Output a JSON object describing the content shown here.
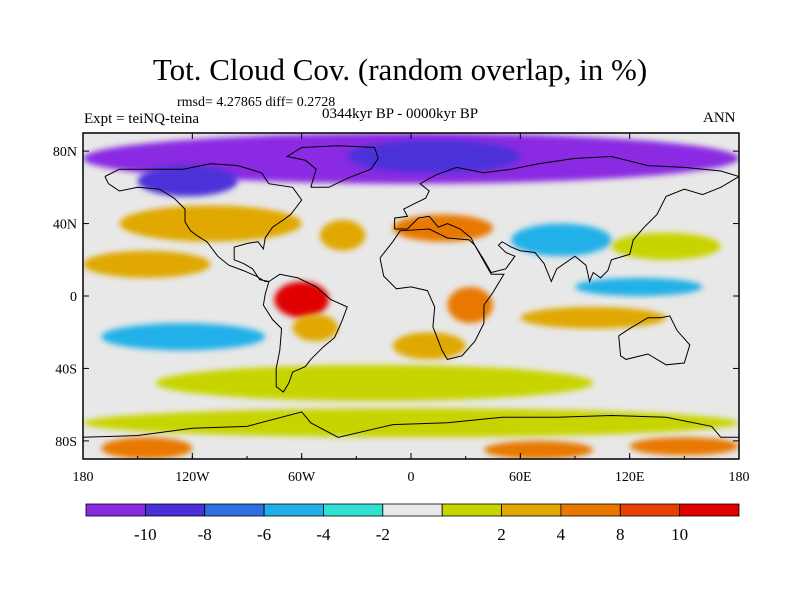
{
  "title": "Tot. Cloud Cov. (random overlap, in %)",
  "stats": "rmsd= 4.27865 diff= 0.2728",
  "experiment": "Expt = teiNQ-teina",
  "period": "0344kyr BP - 0000kyr BP",
  "season": "ANN",
  "map": {
    "projection": "cylindrical-equidistant",
    "lon_range": [
      -180,
      180
    ],
    "lat_range": [
      -90,
      90
    ],
    "lon_ticks": [
      {
        "value": -180,
        "label": "180"
      },
      {
        "value": -120,
        "label": "120W"
      },
      {
        "value": -60,
        "label": "60W"
      },
      {
        "value": 0,
        "label": "0"
      },
      {
        "value": 60,
        "label": "60E"
      },
      {
        "value": 120,
        "label": "120E"
      },
      {
        "value": 180,
        "label": "180"
      }
    ],
    "lat_ticks": [
      {
        "value": 80,
        "label": "80N"
      },
      {
        "value": 40,
        "label": "40N"
      },
      {
        "value": 0,
        "label": "0"
      },
      {
        "value": -40,
        "label": "40S"
      },
      {
        "value": -80,
        "label": "80S"
      }
    ],
    "anomaly_regions": [
      {
        "lon": [
          -180,
          180
        ],
        "lat": [
          62,
          90
        ],
        "band": "-10"
      },
      {
        "lon": [
          -150,
          -95
        ],
        "lat": [
          55,
          72
        ],
        "band": "-8"
      },
      {
        "lon": [
          -35,
          60
        ],
        "lat": [
          68,
          86
        ],
        "band": "-8"
      },
      {
        "lon": [
          -160,
          -60
        ],
        "lat": [
          30,
          50
        ],
        "band": "4"
      },
      {
        "lon": [
          -50,
          -25
        ],
        "lat": [
          25,
          42
        ],
        "band": "4"
      },
      {
        "lon": [
          -10,
          45
        ],
        "lat": [
          30,
          45
        ],
        "band": "8"
      },
      {
        "lon": [
          55,
          110
        ],
        "lat": [
          22,
          40
        ],
        "band": "-4"
      },
      {
        "lon": [
          110,
          170
        ],
        "lat": [
          20,
          35
        ],
        "band": "2"
      },
      {
        "lon": [
          -180,
          -110
        ],
        "lat": [
          10,
          25
        ],
        "band": "4"
      },
      {
        "lon": [
          -75,
          -45
        ],
        "lat": [
          -12,
          8
        ],
        "band": "10"
      },
      {
        "lon": [
          -65,
          -40
        ],
        "lat": [
          -25,
          -10
        ],
        "band": "4"
      },
      {
        "lon": [
          20,
          45
        ],
        "lat": [
          -15,
          5
        ],
        "band": "8"
      },
      {
        "lon": [
          -10,
          30
        ],
        "lat": [
          -35,
          -20
        ],
        "band": "4"
      },
      {
        "lon": [
          60,
          140
        ],
        "lat": [
          -18,
          -6
        ],
        "band": "4"
      },
      {
        "lon": [
          -170,
          -80
        ],
        "lat": [
          -30,
          -15
        ],
        "band": "-4"
      },
      {
        "lon": [
          90,
          160
        ],
        "lat": [
          0,
          10
        ],
        "band": "-4"
      },
      {
        "lon": [
          -140,
          100
        ],
        "lat": [
          -58,
          -38
        ],
        "band": "2"
      },
      {
        "lon": [
          -180,
          180
        ],
        "lat": [
          -78,
          -62
        ],
        "band": "2"
      },
      {
        "lon": [
          -170,
          -120
        ],
        "lat": [
          -90,
          -78
        ],
        "band": "8"
      },
      {
        "lon": [
          40,
          100
        ],
        "lat": [
          -90,
          -80
        ],
        "band": "8"
      },
      {
        "lon": [
          120,
          180
        ],
        "lat": [
          -88,
          -78
        ],
        "band": "8"
      }
    ]
  },
  "colorbar": {
    "colors": [
      "#8a2be2",
      "#4b30d8",
      "#2f6fe0",
      "#20b0e8",
      "#30e0d0",
      "#e8e8e8",
      "#c8d400",
      "#e0a800",
      "#e87800",
      "#e84000",
      "#e00000"
    ],
    "labels": [
      "-10",
      "-8",
      "-6",
      "-4",
      "-2",
      "2",
      "4",
      "8",
      "10"
    ]
  }
}
